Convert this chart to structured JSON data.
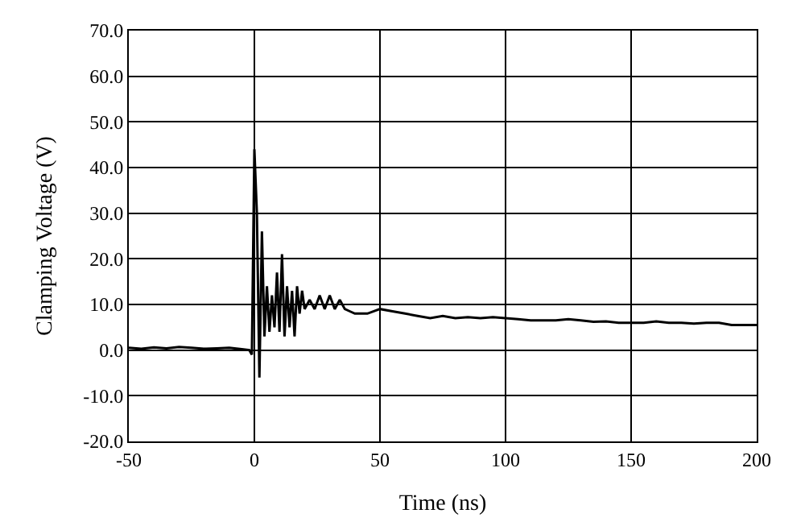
{
  "chart_data": {
    "type": "line",
    "xlabel": "Time (ns)",
    "ylabel": "Clamping Voltage (V)",
    "series": [
      {
        "color": "#000000",
        "x": [
          -50,
          -45,
          -40,
          -35,
          -30,
          -25,
          -20,
          -15,
          -10,
          -5,
          -2,
          -1,
          0,
          1,
          2,
          3,
          4,
          5,
          6,
          7,
          8,
          9,
          10,
          11,
          12,
          13,
          14,
          15,
          16,
          17,
          18,
          19,
          20,
          22,
          24,
          26,
          28,
          30,
          32,
          34,
          36,
          38,
          40,
          45,
          50,
          55,
          60,
          65,
          70,
          75,
          80,
          85,
          90,
          95,
          100,
          105,
          110,
          115,
          120,
          125,
          130,
          135,
          140,
          145,
          150,
          155,
          160,
          165,
          170,
          175,
          180,
          185,
          190,
          195,
          200
        ],
        "values": [
          0.5,
          0.3,
          0.6,
          0.4,
          0.7,
          0.5,
          0.3,
          0.4,
          0.5,
          0.2,
          0,
          -1,
          44,
          30,
          -6,
          26,
          3,
          14,
          4,
          12,
          5,
          17,
          4,
          21,
          3,
          14,
          5,
          13,
          3,
          14,
          8,
          13,
          9,
          11,
          9,
          12,
          9,
          12,
          9,
          11,
          9,
          8.5,
          8,
          8,
          9,
          8.5,
          8,
          7.5,
          7,
          7.5,
          7,
          7.2,
          7,
          7.2,
          7,
          6.8,
          6.5,
          6.5,
          6.5,
          6.8,
          6.5,
          6.2,
          6.3,
          6,
          6,
          6,
          6.3,
          6,
          6,
          5.8,
          6,
          6,
          5.5,
          5.5,
          5.5
        ]
      }
    ],
    "xlim": [
      -50,
      200
    ],
    "xticks": [
      -50,
      0,
      50,
      100,
      150,
      200
    ],
    "ylim": [
      -20,
      70
    ],
    "yticks": [
      {
        "value": -20,
        "label": "-20.0"
      },
      {
        "value": -10,
        "label": "-10.0"
      },
      {
        "value": 0,
        "label": "0.0"
      },
      {
        "value": 10,
        "label": "10.0"
      },
      {
        "value": 20,
        "label": "20.0"
      },
      {
        "value": 30,
        "label": "30.0"
      },
      {
        "value": 40,
        "label": "40.0"
      },
      {
        "value": 50,
        "label": "50.0"
      },
      {
        "value": 60,
        "label": "60.0"
      },
      {
        "value": 70,
        "label": "70.0"
      }
    ],
    "grid": true,
    "line_style": "solid",
    "marker": "none"
  }
}
